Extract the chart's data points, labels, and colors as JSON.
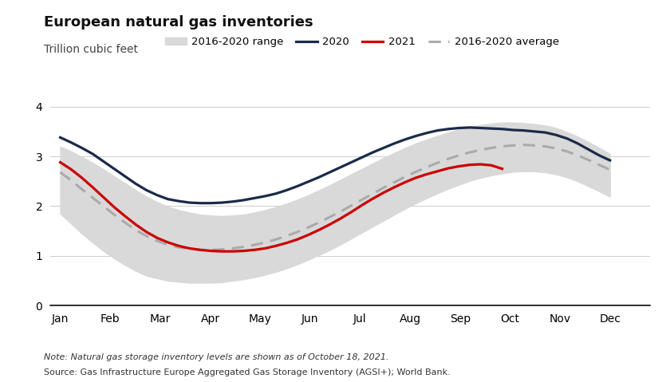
{
  "title": "European natural gas inventories",
  "subtitle": "Trillion cubic feet",
  "note": "Note: Natural gas storage inventory levels are shown as of October 18, 2021.",
  "source": "Source: Gas Infrastructure Europe Aggregated Gas Storage Inventory (AGSI+); World Bank.",
  "xlabels": [
    "Jan",
    "Feb",
    "Mar",
    "Apr",
    "May",
    "Jun",
    "Jul",
    "Aug",
    "Sep",
    "Oct",
    "Nov",
    "Dec"
  ],
  "ylim": [
    0,
    4.3
  ],
  "yticks": [
    0,
    1,
    2,
    3,
    4
  ],
  "color_2020": "#1b2a4a",
  "color_2021": "#cc0000",
  "color_avg": "#aaaaaa",
  "color_range": "#d9d9d9",
  "background": "#ffffff",
  "y_2020": [
    3.38,
    3.28,
    3.17,
    3.05,
    2.9,
    2.75,
    2.6,
    2.45,
    2.32,
    2.22,
    2.14,
    2.1,
    2.07,
    2.06,
    2.06,
    2.07,
    2.09,
    2.12,
    2.16,
    2.2,
    2.25,
    2.32,
    2.4,
    2.49,
    2.58,
    2.68,
    2.78,
    2.88,
    2.98,
    3.08,
    3.17,
    3.26,
    3.34,
    3.41,
    3.47,
    3.52,
    3.55,
    3.57,
    3.58,
    3.57,
    3.56,
    3.55,
    3.53,
    3.52,
    3.5,
    3.48,
    3.43,
    3.36,
    3.26,
    3.14,
    3.02,
    2.92
  ],
  "y_avg": [
    2.68,
    2.52,
    2.34,
    2.17,
    2.0,
    1.83,
    1.67,
    1.52,
    1.4,
    1.3,
    1.22,
    1.17,
    1.14,
    1.12,
    1.12,
    1.13,
    1.15,
    1.18,
    1.22,
    1.27,
    1.33,
    1.4,
    1.48,
    1.57,
    1.67,
    1.78,
    1.89,
    2.01,
    2.13,
    2.25,
    2.37,
    2.48,
    2.59,
    2.69,
    2.78,
    2.87,
    2.95,
    3.02,
    3.08,
    3.13,
    3.17,
    3.2,
    3.22,
    3.23,
    3.22,
    3.2,
    3.16,
    3.1,
    3.02,
    2.93,
    2.83,
    2.73
  ],
  "y_range_low": [
    1.85,
    1.65,
    1.45,
    1.27,
    1.1,
    0.95,
    0.82,
    0.7,
    0.6,
    0.55,
    0.5,
    0.48,
    0.46,
    0.46,
    0.46,
    0.47,
    0.5,
    0.53,
    0.57,
    0.62,
    0.68,
    0.75,
    0.83,
    0.92,
    1.02,
    1.12,
    1.23,
    1.35,
    1.47,
    1.59,
    1.71,
    1.83,
    1.95,
    2.06,
    2.16,
    2.26,
    2.35,
    2.43,
    2.51,
    2.57,
    2.62,
    2.66,
    2.69,
    2.7,
    2.7,
    2.68,
    2.64,
    2.58,
    2.5,
    2.4,
    2.3,
    2.19
  ],
  "y_range_high": [
    3.2,
    3.1,
    2.99,
    2.87,
    2.74,
    2.6,
    2.46,
    2.32,
    2.19,
    2.08,
    1.99,
    1.92,
    1.87,
    1.83,
    1.81,
    1.8,
    1.81,
    1.83,
    1.87,
    1.92,
    1.98,
    2.05,
    2.13,
    2.22,
    2.32,
    2.42,
    2.53,
    2.64,
    2.75,
    2.86,
    2.97,
    3.07,
    3.17,
    3.26,
    3.34,
    3.41,
    3.48,
    3.54,
    3.59,
    3.63,
    3.66,
    3.68,
    3.68,
    3.67,
    3.65,
    3.62,
    3.57,
    3.49,
    3.4,
    3.29,
    3.17,
    3.05
  ],
  "n_full": 52,
  "n_2021": 42,
  "y_2021": [
    2.88,
    2.74,
    2.57,
    2.38,
    2.18,
    1.98,
    1.8,
    1.63,
    1.48,
    1.36,
    1.27,
    1.2,
    1.15,
    1.12,
    1.1,
    1.09,
    1.09,
    1.1,
    1.12,
    1.15,
    1.2,
    1.26,
    1.33,
    1.42,
    1.52,
    1.63,
    1.75,
    1.88,
    2.02,
    2.15,
    2.27,
    2.38,
    2.48,
    2.57,
    2.64,
    2.7,
    2.76,
    2.8,
    2.83,
    2.84,
    2.82,
    2.75
  ]
}
